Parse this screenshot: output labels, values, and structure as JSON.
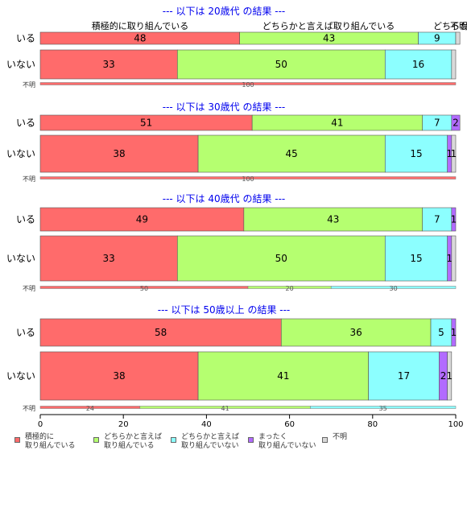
{
  "colors": {
    "series": [
      "#ff6b6b",
      "#b5ff70",
      "#8cffff",
      "#b26bff",
      "#d9d9d9"
    ],
    "title": "#0000ee"
  },
  "chart_data": {
    "type": "bar",
    "orientation": "horizontal",
    "stacked": "100%",
    "xlim": [
      0,
      100
    ],
    "xticks": [
      0,
      20,
      40,
      60,
      80,
      100
    ],
    "series": [
      {
        "name": "積極的に\n取り組んでいる"
      },
      {
        "name": "どちらかと言えば\n取り組んでいる"
      },
      {
        "name": "どちらかと言えば\n取り組んでいない"
      },
      {
        "name": "まったく\n取り組んでいない"
      },
      {
        "name": "不明"
      }
    ],
    "top_labels": [
      "積極的に取り組んでいる",
      "どちらかと言えば取り組んでいる",
      "どちらか",
      "不明",
      "..."
    ],
    "panels": [
      {
        "title": "--- 以下は 20歳代 の結果 ---",
        "rows": [
          {
            "label": "いる",
            "values": [
              48,
              43,
              9,
              0,
              1
            ],
            "value_labels": [
              "48",
              "43",
              "9",
              "",
              ""
            ]
          },
          {
            "label": "いない",
            "values": [
              33,
              50,
              16,
              0,
              1
            ],
            "value_labels": [
              "33",
              "50",
              "16",
              "",
              ""
            ]
          }
        ],
        "strip_label": "不明",
        "strip_values": [
          100
        ],
        "strip_labels": [
          "100"
        ]
      },
      {
        "title": "--- 以下は 30歳代 の結果 ---",
        "rows": [
          {
            "label": "いる",
            "values": [
              51,
              41,
              7,
              2,
              0
            ],
            "value_labels": [
              "51",
              "41",
              "7",
              "2",
              ""
            ]
          },
          {
            "label": "いない",
            "values": [
              38,
              45,
              15,
              1,
              1
            ],
            "value_labels": [
              "38",
              "45",
              "15",
              "1",
              "1"
            ]
          }
        ],
        "strip_label": "不明",
        "strip_values": [
          100
        ],
        "strip_labels": [
          "100"
        ]
      },
      {
        "title": "--- 以下は 40歳代 の結果 ---",
        "rows": [
          {
            "label": "いる",
            "values": [
              49,
              43,
              7,
              1,
              0
            ],
            "value_labels": [
              "49",
              "43",
              "7",
              "1",
              ""
            ]
          },
          {
            "label": "いない",
            "values": [
              33,
              50,
              15,
              1,
              1
            ],
            "value_labels": [
              "33",
              "50",
              "15",
              "1",
              ""
            ]
          }
        ],
        "strip_label": "不明",
        "strip_values": [
          50,
          20,
          30
        ],
        "strip_labels": [
          "50",
          "20",
          "30"
        ]
      },
      {
        "title": "--- 以下は 50歳以上 の結果 ---",
        "rows": [
          {
            "label": "いる",
            "values": [
              58,
              36,
              5,
              1,
              0
            ],
            "value_labels": [
              "58",
              "36",
              "5",
              "1",
              ""
            ]
          },
          {
            "label": "いない",
            "values": [
              38,
              41,
              17,
              2,
              1
            ],
            "value_labels": [
              "38",
              "41",
              "17",
              "2",
              "1"
            ]
          }
        ],
        "strip_label": "不明",
        "strip_values": [
          24,
          41,
          35
        ],
        "strip_labels": [
          "24",
          "41",
          "35"
        ]
      }
    ]
  }
}
